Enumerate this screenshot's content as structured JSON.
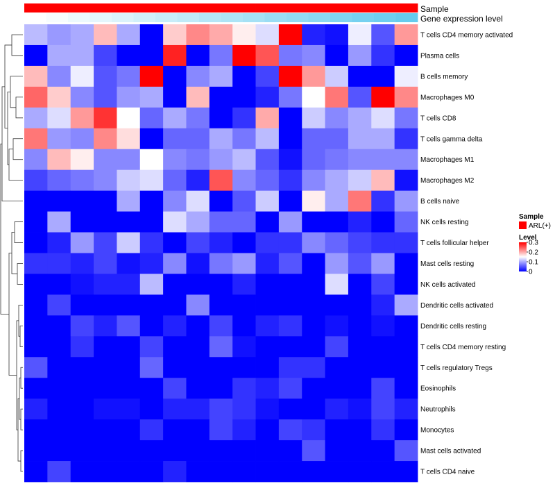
{
  "chart_data": {
    "type": "heatmap",
    "title": "",
    "annotations": [
      {
        "name": "Sample",
        "type": "categorical",
        "values": [
          "ARL(+)"
        ],
        "colors": [
          "#ff0000"
        ]
      },
      {
        "name": "Gene expression level",
        "type": "continuous",
        "values": [
          0.0,
          0.03,
          0.07,
          0.1,
          0.13,
          0.17,
          0.2,
          0.23,
          0.27,
          0.3,
          0.33,
          0.37,
          0.4,
          0.43,
          0.47,
          0.5,
          0.53,
          0.56
        ]
      }
    ],
    "legend": {
      "position": "right",
      "sample": {
        "title": "Sample",
        "entries": [
          {
            "label": "ARL(+)",
            "color": "#ff0000"
          }
        ]
      },
      "level": {
        "title": "Level",
        "ticks": [
          "0.3",
          "0.2",
          "0.1",
          "0"
        ],
        "range": [
          0,
          0.3
        ],
        "colors": {
          "low": "#0000ff",
          "mid": "#ffffff",
          "high": "#ff0000"
        }
      }
    },
    "range": [
      0,
      0.3
    ],
    "row_labels": [
      "T cells CD4 memory activated",
      "Plasma cells",
      "B cells memory",
      "Macrophages M0",
      "T cells CD8",
      "T cells gamma delta",
      "Macrophages M1",
      "Macrophages M2",
      "B cells naive",
      "NK cells resting",
      "T cells follicular helper",
      "Mast cells resting",
      "NK cells activated",
      "Dendritic cells activated",
      "Dendritic cells resting",
      "T cells CD4 memory resting",
      "T cells regulatory  Tregs",
      "Eosinophils",
      "Neutrophils",
      "Monocytes",
      "Mast cells activated",
      "T cells CD4 naive"
    ],
    "values": [
      [
        0.11,
        0.09,
        0.1,
        0.19,
        0.1,
        0.0,
        0.18,
        0.22,
        0.2,
        0.16,
        0.13,
        0.3,
        0.02,
        0.01,
        0.14,
        0.05,
        0.21
      ],
      [
        0.0,
        0.1,
        0.1,
        0.04,
        0.0,
        0.0,
        0.28,
        0.0,
        0.07,
        0.3,
        0.25,
        0.07,
        0.08,
        0.0,
        0.09,
        0.03,
        0.0
      ],
      [
        0.19,
        0.08,
        0.14,
        0.05,
        0.07,
        0.3,
        0.0,
        0.08,
        0.1,
        0.0,
        0.04,
        0.3,
        0.21,
        0.12,
        0.0,
        0.0,
        0.14
      ],
      [
        0.24,
        0.18,
        0.08,
        0.05,
        0.09,
        0.1,
        0.0,
        0.19,
        0.0,
        0.0,
        0.02,
        0.07,
        0.15,
        0.23,
        0.05,
        0.3,
        0.22
      ],
      [
        0.1,
        0.13,
        0.21,
        0.27,
        0.15,
        0.06,
        0.1,
        0.07,
        0.0,
        0.03,
        0.2,
        0.0,
        0.12,
        0.08,
        0.1,
        0.13,
        0.07
      ],
      [
        0.23,
        0.09,
        0.08,
        0.22,
        0.17,
        0.0,
        0.06,
        0.06,
        0.1,
        0.07,
        0.11,
        0.0,
        0.06,
        0.06,
        0.1,
        0.1,
        0.03
      ],
      [
        0.08,
        0.19,
        0.16,
        0.08,
        0.08,
        0.15,
        0.08,
        0.07,
        0.09,
        0.11,
        0.05,
        0.01,
        0.06,
        0.07,
        0.08,
        0.08,
        0.08
      ],
      [
        0.04,
        0.06,
        0.07,
        0.08,
        0.12,
        0.13,
        0.06,
        0.02,
        0.25,
        0.08,
        0.06,
        0.03,
        0.08,
        0.1,
        0.12,
        0.19,
        0.01
      ],
      [
        0.0,
        0.0,
        0.0,
        0.0,
        0.1,
        0.0,
        0.08,
        0.13,
        0.0,
        0.05,
        0.12,
        0.0,
        0.16,
        0.1,
        0.23,
        0.03,
        0.09
      ],
      [
        0.0,
        0.1,
        0.0,
        0.0,
        0.0,
        0.0,
        0.13,
        0.1,
        0.06,
        0.06,
        0.0,
        0.09,
        0.0,
        0.0,
        0.02,
        0.0,
        0.06
      ],
      [
        0.0,
        0.02,
        0.09,
        0.04,
        0.12,
        0.03,
        0.0,
        0.04,
        0.02,
        0.0,
        0.03,
        0.03,
        0.08,
        0.06,
        0.04,
        0.03,
        0.03
      ],
      [
        0.03,
        0.03,
        0.02,
        0.04,
        0.01,
        0.02,
        0.08,
        0.01,
        0.07,
        0.09,
        0.02,
        0.05,
        0.0,
        0.09,
        0.05,
        0.09,
        0.0
      ],
      [
        0.0,
        0.0,
        0.01,
        0.02,
        0.02,
        0.11,
        0.0,
        0.0,
        0.0,
        0.02,
        0.0,
        0.0,
        0.0,
        0.13,
        0.0,
        0.04,
        0.0
      ],
      [
        0.0,
        0.04,
        0.0,
        0.0,
        0.0,
        0.0,
        0.0,
        0.08,
        0.0,
        0.0,
        0.0,
        0.0,
        0.0,
        0.0,
        0.0,
        0.02,
        0.1
      ],
      [
        0.0,
        0.0,
        0.04,
        0.02,
        0.05,
        0.0,
        0.02,
        0.0,
        0.04,
        0.0,
        0.02,
        0.03,
        0.0,
        0.01,
        0.0,
        0.01,
        0.0
      ],
      [
        0.0,
        0.0,
        0.03,
        0.0,
        0.0,
        0.04,
        0.0,
        0.0,
        0.06,
        0.01,
        0.0,
        0.0,
        0.0,
        0.04,
        0.0,
        0.0,
        0.0
      ],
      [
        0.05,
        0.0,
        0.0,
        0.0,
        0.0,
        0.06,
        0.0,
        0.0,
        0.0,
        0.0,
        0.0,
        0.03,
        0.03,
        0.0,
        0.0,
        0.0,
        0.0
      ],
      [
        0.0,
        0.0,
        0.0,
        0.0,
        0.0,
        0.0,
        0.04,
        0.0,
        0.0,
        0.03,
        0.02,
        0.04,
        0.0,
        0.0,
        0.0,
        0.04,
        0.0
      ],
      [
        0.02,
        0.0,
        0.0,
        0.01,
        0.01,
        0.0,
        0.02,
        0.02,
        0.04,
        0.03,
        0.01,
        0.0,
        0.0,
        0.02,
        0.01,
        0.04,
        0.02
      ],
      [
        0.0,
        0.0,
        0.0,
        0.0,
        0.0,
        0.03,
        0.0,
        0.0,
        0.04,
        0.02,
        0.0,
        0.04,
        0.03,
        0.0,
        0.0,
        0.03,
        0.0
      ],
      [
        0.0,
        0.0,
        0.0,
        0.0,
        0.0,
        0.0,
        0.0,
        0.0,
        0.0,
        0.0,
        0.0,
        0.0,
        0.05,
        0.0,
        0.0,
        0.0,
        0.05
      ],
      [
        0.0,
        0.04,
        0.0,
        0.0,
        0.0,
        0.0,
        0.02,
        0.0,
        0.0,
        0.0,
        0.0,
        0.0,
        0.0,
        0.0,
        0.0,
        0.0,
        0.0
      ]
    ]
  }
}
